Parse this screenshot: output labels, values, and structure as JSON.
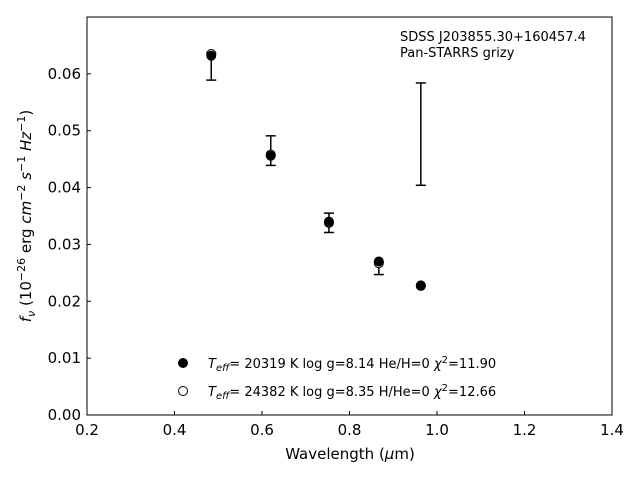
{
  "chart_data": {
    "type": "scatter",
    "annotation_lines": [
      "SDSS J203855.30+160457.4",
      "Pan-STARRS grizy"
    ],
    "xlabel": "Wavelength (μm)",
    "ylabel": "f_ν (10^-26 erg cm^-2 s^-1 Hz^-1)",
    "xlim": [
      0.2,
      1.4
    ],
    "ylim": [
      0.0,
      0.07
    ],
    "xticks": [
      "0.2",
      "0.4",
      "0.6",
      "0.8",
      "1.0",
      "1.2",
      "1.4"
    ],
    "yticks": [
      "0.00",
      "0.01",
      "0.02",
      "0.03",
      "0.04",
      "0.05",
      "0.06"
    ],
    "grid": false,
    "legend_position": "lower-center",
    "observed": {
      "x": [
        0.484,
        0.62,
        0.753,
        0.867,
        0.963
      ],
      "y": [
        0.0613,
        0.0465,
        0.0338,
        0.0258,
        0.0494
      ],
      "yerr": [
        0.0024,
        0.0026,
        0.0017,
        0.0011,
        0.009
      ]
    },
    "series": [
      {
        "marker": "filled-circle",
        "legend_teff": "20319",
        "legend_logg": "8.14",
        "legend_comp": "He/H=0",
        "legend_chi2": "11.90",
        "x": [
          0.484,
          0.62,
          0.753,
          0.867,
          0.963
        ],
        "y": [
          0.0632,
          0.0456,
          0.034,
          0.027,
          0.0228
        ]
      },
      {
        "marker": "open-circle",
        "legend_teff": "24382",
        "legend_logg": "8.35",
        "legend_comp": "H/He=0",
        "legend_chi2": "12.66",
        "x": [
          0.484,
          0.62,
          0.753,
          0.867,
          0.963
        ],
        "y": [
          0.0635,
          0.0458,
          0.0338,
          0.0267,
          0.0227
        ]
      }
    ]
  }
}
